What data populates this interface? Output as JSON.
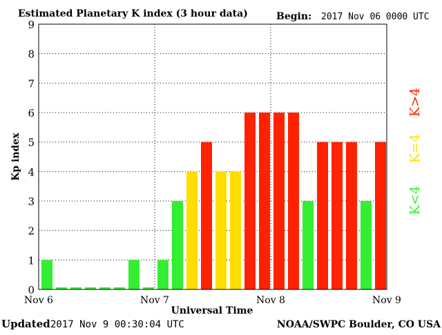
{
  "header": {
    "title": "Estimated Planetary K index (3 hour data)",
    "begin_label": "Begin:",
    "begin_value": "2017 Nov 06 0000 UTC"
  },
  "footer": {
    "updated_label": "Updated",
    "updated_value": "2017 Nov  9 00:30:04 UTC",
    "source": "NOAA/SWPC Boulder, CO USA"
  },
  "legend": {
    "high": "K>4",
    "mid": "K=4",
    "low": "K<4"
  },
  "colors": {
    "low": "#33ee33",
    "mid": "#ffdd00",
    "high": "#ff2200",
    "grid": "#000000",
    "frame": "#000000"
  },
  "chart_data": {
    "type": "bar",
    "title": "Estimated Planetary K index (3 hour data)",
    "xlabel": "Universal Time",
    "ylabel": "Kp index",
    "ylim": [
      0,
      9
    ],
    "yticks": [
      "0",
      "1",
      "2",
      "3",
      "4",
      "5",
      "6",
      "7",
      "8",
      "9"
    ],
    "xticks": [
      "Nov 6",
      "Nov 7",
      "Nov 8",
      "Nov 9"
    ],
    "grid": true,
    "slots_per_day": 8,
    "values": [
      1,
      0,
      0,
      0,
      0,
      0,
      1,
      0,
      1,
      3,
      4,
      5,
      4,
      4,
      6,
      6,
      6,
      6,
      3,
      5,
      5,
      5,
      3,
      5
    ]
  }
}
